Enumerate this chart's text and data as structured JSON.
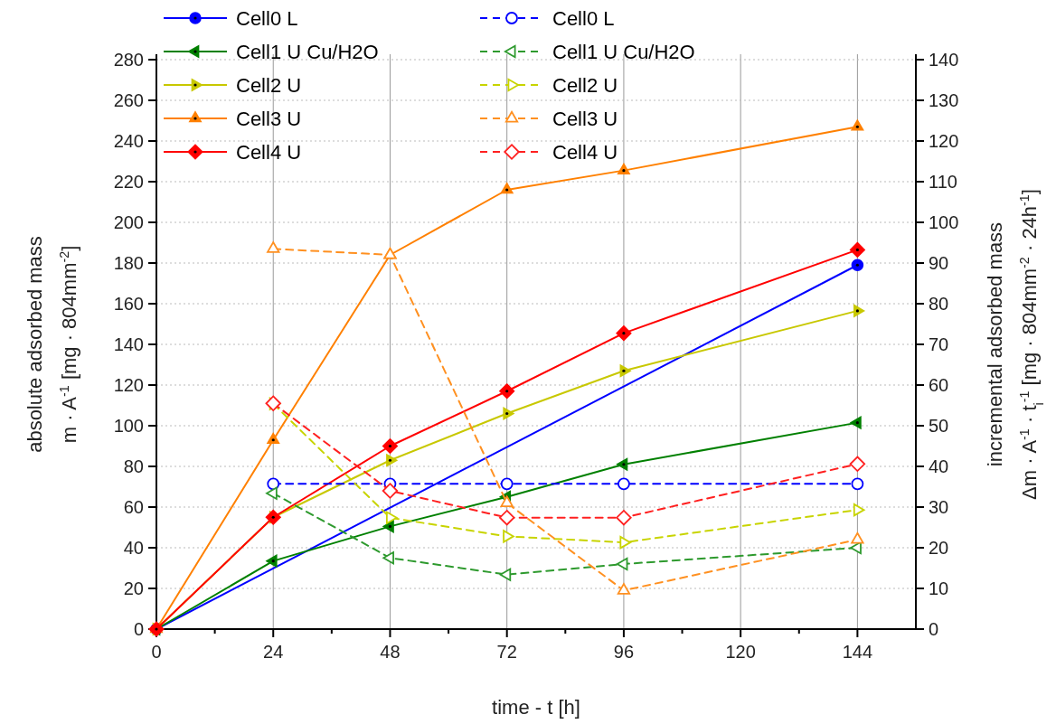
{
  "chart_data": {
    "type": "line",
    "xlabel": "time - t [h]",
    "ylabel": "absolute adsorbed mass\nm · A$^{-1}$ [mg · 804mm$^{-2}$]",
    "y2label": "incremental adsorbed mass\nΔm · A$^{-1}$ · t$_{i}$$^{-1}$ [mg · 804mm$^{-2}$ · 24h$^{-1}$]",
    "xlim": [
      0,
      156
    ],
    "xticks": [
      0,
      {
        "value": 12,
        "label": null
      },
      24,
      {
        "value": 36,
        "label": null
      },
      48,
      {
        "value": 60,
        "label": null
      },
      72,
      {
        "value": 84,
        "label": null
      },
      96,
      {
        "value": 108,
        "label": null
      },
      120,
      {
        "value": 132,
        "label": null
      },
      144
    ],
    "ylim": [
      0,
      280
    ],
    "yticks": [
      0,
      20,
      40,
      60,
      80,
      100,
      120,
      140,
      160,
      180,
      200,
      220,
      240,
      260,
      280
    ],
    "y2lim": [
      0,
      140
    ],
    "y2ticks": [
      0,
      10,
      20,
      30,
      40,
      50,
      60,
      70,
      80,
      90,
      100,
      110,
      120,
      130,
      140
    ],
    "grid": true,
    "legend": "top left",
    "series": [
      {
        "name": "Cell0 L",
        "color": "#0000ff",
        "marker": "circle",
        "line_style": "solid",
        "x": [
          0,
          144
        ],
        "values": [
          0,
          179
        ]
      },
      {
        "name": "Cell1 U Cu/H2O",
        "color": "#008000",
        "marker": "triangle-left",
        "line_style": "solid",
        "x": [
          0,
          24,
          48,
          72,
          96,
          144
        ],
        "values": [
          0,
          33.5,
          50.5,
          65,
          81,
          101.5
        ]
      },
      {
        "name": "Cell2 U",
        "color": "#c8c800",
        "marker": "triangle-right",
        "line_style": "solid",
        "x": [
          0,
          24,
          48,
          72,
          96,
          144
        ],
        "values": [
          0,
          55,
          83,
          106,
          127,
          156.5
        ]
      },
      {
        "name": "Cell3 U",
        "color": "#ff8000",
        "marker": "triangle",
        "line_style": "solid",
        "x": [
          0,
          24,
          48,
          72,
          96,
          144
        ],
        "values": [
          0,
          93,
          184,
          216,
          225.5,
          247
        ]
      },
      {
        "name": "Cell4 U",
        "color": "#ff0000",
        "marker": "diamond",
        "line_style": "solid",
        "x": [
          0,
          24,
          48,
          72,
          96,
          144
        ],
        "values": [
          0,
          55,
          90,
          117,
          145.5,
          186.5
        ]
      },
      {
        "name": "Cell0 L",
        "color": "#0000ff",
        "marker": "circle",
        "line_style": "dashed",
        "axis": "y2",
        "x": [
          24,
          48,
          72,
          96,
          144
        ],
        "values": [
          35.7,
          35.7,
          35.7,
          35.7,
          35.7
        ]
      },
      {
        "name": "Cell1 U Cu/H2O",
        "color": "#2e9a2e",
        "marker": "triangle-left",
        "line_style": "dashed",
        "axis": "y2",
        "x": [
          24,
          48,
          72,
          96,
          144
        ],
        "values": [
          33.4,
          17.5,
          13.4,
          16,
          20
        ]
      },
      {
        "name": "Cell2 U",
        "color": "#c8d400",
        "marker": "triangle-right",
        "line_style": "dashed",
        "axis": "y2",
        "x": [
          24,
          48,
          72,
          96,
          144
        ],
        "values": [
          55.4,
          27.4,
          22.8,
          21.3,
          29.3
        ]
      },
      {
        "name": "Cell3 U",
        "color": "#ff9020",
        "marker": "triangle",
        "line_style": "dashed",
        "axis": "y2",
        "x": [
          24,
          48,
          72,
          96,
          144
        ],
        "values": [
          93.5,
          92,
          31,
          9.5,
          22
        ]
      },
      {
        "name": "Cell4 U",
        "color": "#ff2020",
        "marker": "diamond",
        "line_style": "dashed",
        "axis": "y2",
        "x": [
          24,
          48,
          72,
          96,
          144
        ],
        "values": [
          55.5,
          34,
          27.4,
          27.4,
          40.6
        ]
      }
    ]
  }
}
